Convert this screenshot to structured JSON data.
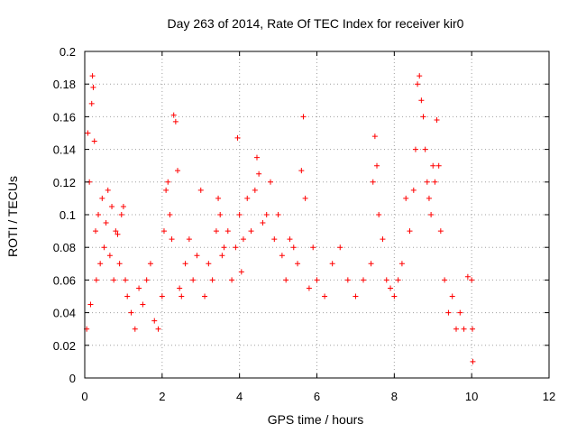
{
  "chart_data": {
    "type": "scatter",
    "title": "Day 263 of 2014, Rate Of TEC Index for receiver kir0",
    "xlabel": "GPS time / hours",
    "ylabel": "ROTI / TECUs",
    "xlim": [
      0,
      12
    ],
    "ylim": [
      0,
      0.2
    ],
    "xticks": [
      0,
      2,
      4,
      6,
      8,
      10,
      12
    ],
    "xtick_labels": [
      "0",
      "2",
      "4",
      "6",
      "8",
      "10",
      "12"
    ],
    "yticks": [
      0,
      0.02,
      0.04,
      0.06,
      0.08,
      0.1,
      0.12,
      0.14,
      0.16,
      0.18,
      0.2
    ],
    "ytick_labels": [
      "0",
      "0.02",
      "0.04",
      "0.06",
      "0.08",
      "0.1",
      "0.12",
      "0.14",
      "0.16",
      "0.18",
      "0.2"
    ],
    "grid": true,
    "marker": "plus",
    "marker_color": "#ff0000",
    "series": [
      {
        "name": "ROTI",
        "points": [
          [
            0.05,
            0.03
          ],
          [
            0.08,
            0.15
          ],
          [
            0.12,
            0.12
          ],
          [
            0.15,
            0.045
          ],
          [
            0.18,
            0.168
          ],
          [
            0.2,
            0.185
          ],
          [
            0.22,
            0.178
          ],
          [
            0.25,
            0.145
          ],
          [
            0.28,
            0.09
          ],
          [
            0.3,
            0.06
          ],
          [
            0.35,
            0.1
          ],
          [
            0.4,
            0.07
          ],
          [
            0.45,
            0.11
          ],
          [
            0.5,
            0.08
          ],
          [
            0.55,
            0.095
          ],
          [
            0.6,
            0.115
          ],
          [
            0.65,
            0.075
          ],
          [
            0.7,
            0.105
          ],
          [
            0.75,
            0.06
          ],
          [
            0.8,
            0.09
          ],
          [
            0.85,
            0.088
          ],
          [
            0.9,
            0.07
          ],
          [
            0.95,
            0.1
          ],
          [
            1.0,
            0.105
          ],
          [
            1.05,
            0.06
          ],
          [
            1.1,
            0.05
          ],
          [
            1.2,
            0.04
          ],
          [
            1.3,
            0.03
          ],
          [
            1.4,
            0.055
          ],
          [
            1.5,
            0.045
          ],
          [
            1.6,
            0.06
          ],
          [
            1.7,
            0.07
          ],
          [
            1.8,
            0.035
          ],
          [
            1.9,
            0.03
          ],
          [
            2.0,
            0.05
          ],
          [
            2.05,
            0.09
          ],
          [
            2.1,
            0.115
          ],
          [
            2.15,
            0.12
          ],
          [
            2.2,
            0.1
          ],
          [
            2.25,
            0.085
          ],
          [
            2.3,
            0.161
          ],
          [
            2.35,
            0.157
          ],
          [
            2.4,
            0.127
          ],
          [
            2.45,
            0.055
          ],
          [
            2.5,
            0.05
          ],
          [
            2.6,
            0.07
          ],
          [
            2.7,
            0.085
          ],
          [
            2.8,
            0.06
          ],
          [
            2.9,
            0.075
          ],
          [
            3.0,
            0.115
          ],
          [
            3.1,
            0.05
          ],
          [
            3.2,
            0.07
          ],
          [
            3.3,
            0.06
          ],
          [
            3.4,
            0.09
          ],
          [
            3.45,
            0.11
          ],
          [
            3.5,
            0.1
          ],
          [
            3.55,
            0.075
          ],
          [
            3.6,
            0.08
          ],
          [
            3.7,
            0.09
          ],
          [
            3.8,
            0.06
          ],
          [
            3.9,
            0.08
          ],
          [
            3.95,
            0.147
          ],
          [
            4.0,
            0.1
          ],
          [
            4.05,
            0.065
          ],
          [
            4.1,
            0.085
          ],
          [
            4.2,
            0.11
          ],
          [
            4.3,
            0.09
          ],
          [
            4.4,
            0.115
          ],
          [
            4.45,
            0.135
          ],
          [
            4.5,
            0.125
          ],
          [
            4.6,
            0.095
          ],
          [
            4.7,
            0.1
          ],
          [
            4.8,
            0.12
          ],
          [
            4.9,
            0.085
          ],
          [
            5.0,
            0.1
          ],
          [
            5.1,
            0.075
          ],
          [
            5.2,
            0.06
          ],
          [
            5.3,
            0.085
          ],
          [
            5.4,
            0.08
          ],
          [
            5.5,
            0.07
          ],
          [
            5.6,
            0.127
          ],
          [
            5.65,
            0.16
          ],
          [
            5.7,
            0.11
          ],
          [
            5.8,
            0.055
          ],
          [
            5.9,
            0.08
          ],
          [
            6.0,
            0.06
          ],
          [
            6.2,
            0.05
          ],
          [
            6.4,
            0.07
          ],
          [
            6.6,
            0.08
          ],
          [
            6.8,
            0.06
          ],
          [
            7.0,
            0.05
          ],
          [
            7.2,
            0.06
          ],
          [
            7.4,
            0.07
          ],
          [
            7.45,
            0.12
          ],
          [
            7.5,
            0.148
          ],
          [
            7.55,
            0.13
          ],
          [
            7.6,
            0.1
          ],
          [
            7.7,
            0.085
          ],
          [
            7.8,
            0.06
          ],
          [
            7.9,
            0.055
          ],
          [
            8.0,
            0.05
          ],
          [
            8.1,
            0.06
          ],
          [
            8.2,
            0.07
          ],
          [
            8.3,
            0.11
          ],
          [
            8.4,
            0.09
          ],
          [
            8.5,
            0.115
          ],
          [
            8.55,
            0.14
          ],
          [
            8.6,
            0.18
          ],
          [
            8.65,
            0.185
          ],
          [
            8.7,
            0.17
          ],
          [
            8.75,
            0.16
          ],
          [
            8.8,
            0.14
          ],
          [
            8.85,
            0.12
          ],
          [
            8.9,
            0.11
          ],
          [
            8.95,
            0.1
          ],
          [
            9.0,
            0.13
          ],
          [
            9.05,
            0.12
          ],
          [
            9.1,
            0.158
          ],
          [
            9.15,
            0.13
          ],
          [
            9.2,
            0.09
          ],
          [
            9.3,
            0.06
          ],
          [
            9.4,
            0.04
          ],
          [
            9.5,
            0.05
          ],
          [
            9.6,
            0.03
          ],
          [
            9.7,
            0.04
          ],
          [
            9.8,
            0.03
          ],
          [
            9.9,
            0.062
          ],
          [
            10.0,
            0.06
          ],
          [
            10.02,
            0.03
          ],
          [
            10.03,
            0.01
          ]
        ]
      }
    ]
  }
}
